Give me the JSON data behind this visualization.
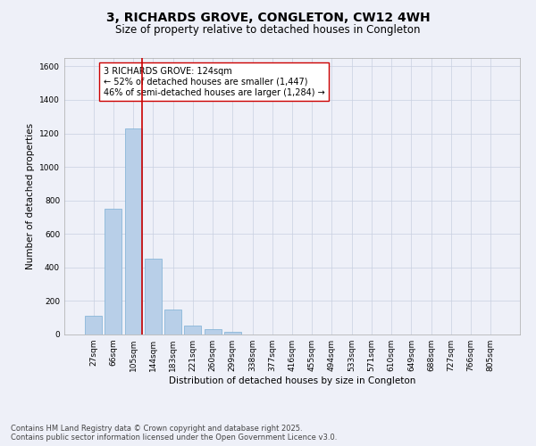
{
  "title": "3, RICHARDS GROVE, CONGLETON, CW12 4WH",
  "subtitle": "Size of property relative to detached houses in Congleton",
  "xlabel": "Distribution of detached houses by size in Congleton",
  "ylabel": "Number of detached properties",
  "categories": [
    "27sqm",
    "66sqm",
    "105sqm",
    "144sqm",
    "183sqm",
    "221sqm",
    "260sqm",
    "299sqm",
    "338sqm",
    "377sqm",
    "416sqm",
    "455sqm",
    "494sqm",
    "533sqm",
    "571sqm",
    "610sqm",
    "649sqm",
    "688sqm",
    "727sqm",
    "766sqm",
    "805sqm"
  ],
  "values": [
    110,
    750,
    1230,
    450,
    150,
    55,
    30,
    15,
    0,
    0,
    0,
    0,
    0,
    0,
    0,
    0,
    0,
    0,
    0,
    0,
    0
  ],
  "bar_color": "#b8cfe8",
  "bar_edgecolor": "#7bafd4",
  "grid_color": "#c8d0e0",
  "background_color": "#eef0f8",
  "axisbg": "#eef0f8",
  "ylim": [
    0,
    1650
  ],
  "yticks": [
    0,
    200,
    400,
    600,
    800,
    1000,
    1200,
    1400,
    1600
  ],
  "vline_x": 2.45,
  "vline_color": "#cc0000",
  "annotation_text": "3 RICHARDS GROVE: 124sqm\n← 52% of detached houses are smaller (1,447)\n46% of semi-detached houses are larger (1,284) →",
  "annotation_box_edgecolor": "#cc0000",
  "annotation_box_facecolor": "#ffffff",
  "footer_text": "Contains HM Land Registry data © Crown copyright and database right 2025.\nContains public sector information licensed under the Open Government Licence v3.0.",
  "title_fontsize": 10,
  "subtitle_fontsize": 8.5,
  "axis_label_fontsize": 7.5,
  "tick_fontsize": 6.5,
  "annotation_fontsize": 7,
  "footer_fontsize": 6
}
